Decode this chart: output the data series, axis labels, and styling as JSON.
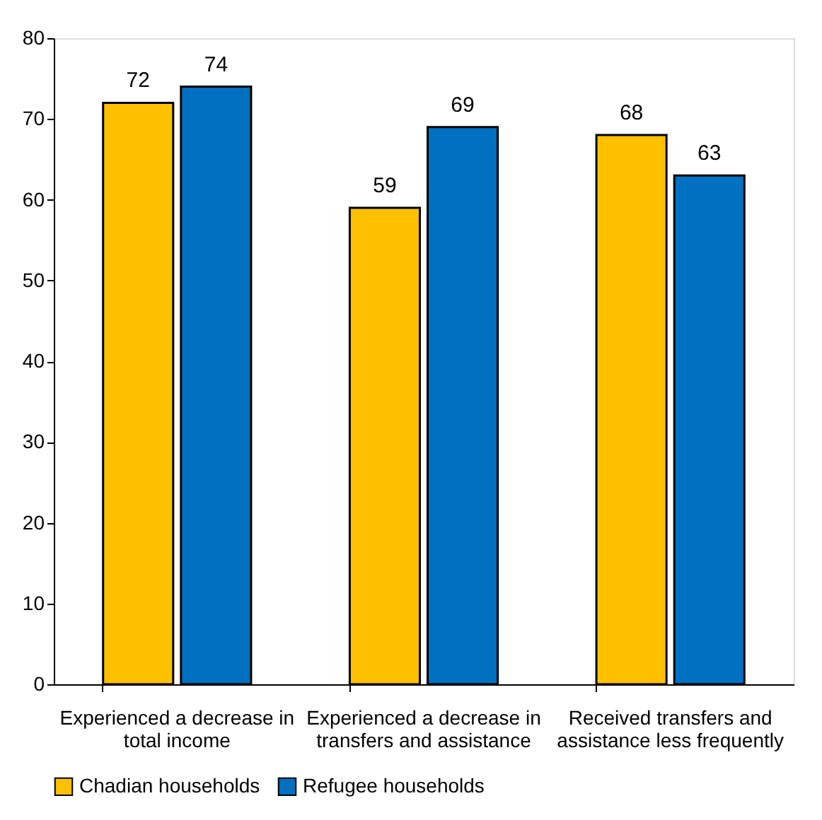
{
  "chart_data": {
    "type": "bar",
    "categories": [
      "Experienced a decrease in total income",
      "Experienced a decrease in transfers and assistance",
      "Received transfers and assistance less frequently"
    ],
    "series": [
      {
        "name": "Chadian households",
        "color": "#ffc000",
        "values": [
          72,
          59,
          68
        ]
      },
      {
        "name": "Refugee households",
        "color": "#0070c0",
        "values": [
          74,
          69,
          63
        ]
      }
    ],
    "ylim": [
      0,
      80
    ],
    "yticks": [
      0,
      10,
      20,
      30,
      40,
      50,
      60,
      70,
      80
    ],
    "grid": false,
    "legend": "bottom",
    "data_labels": true
  }
}
